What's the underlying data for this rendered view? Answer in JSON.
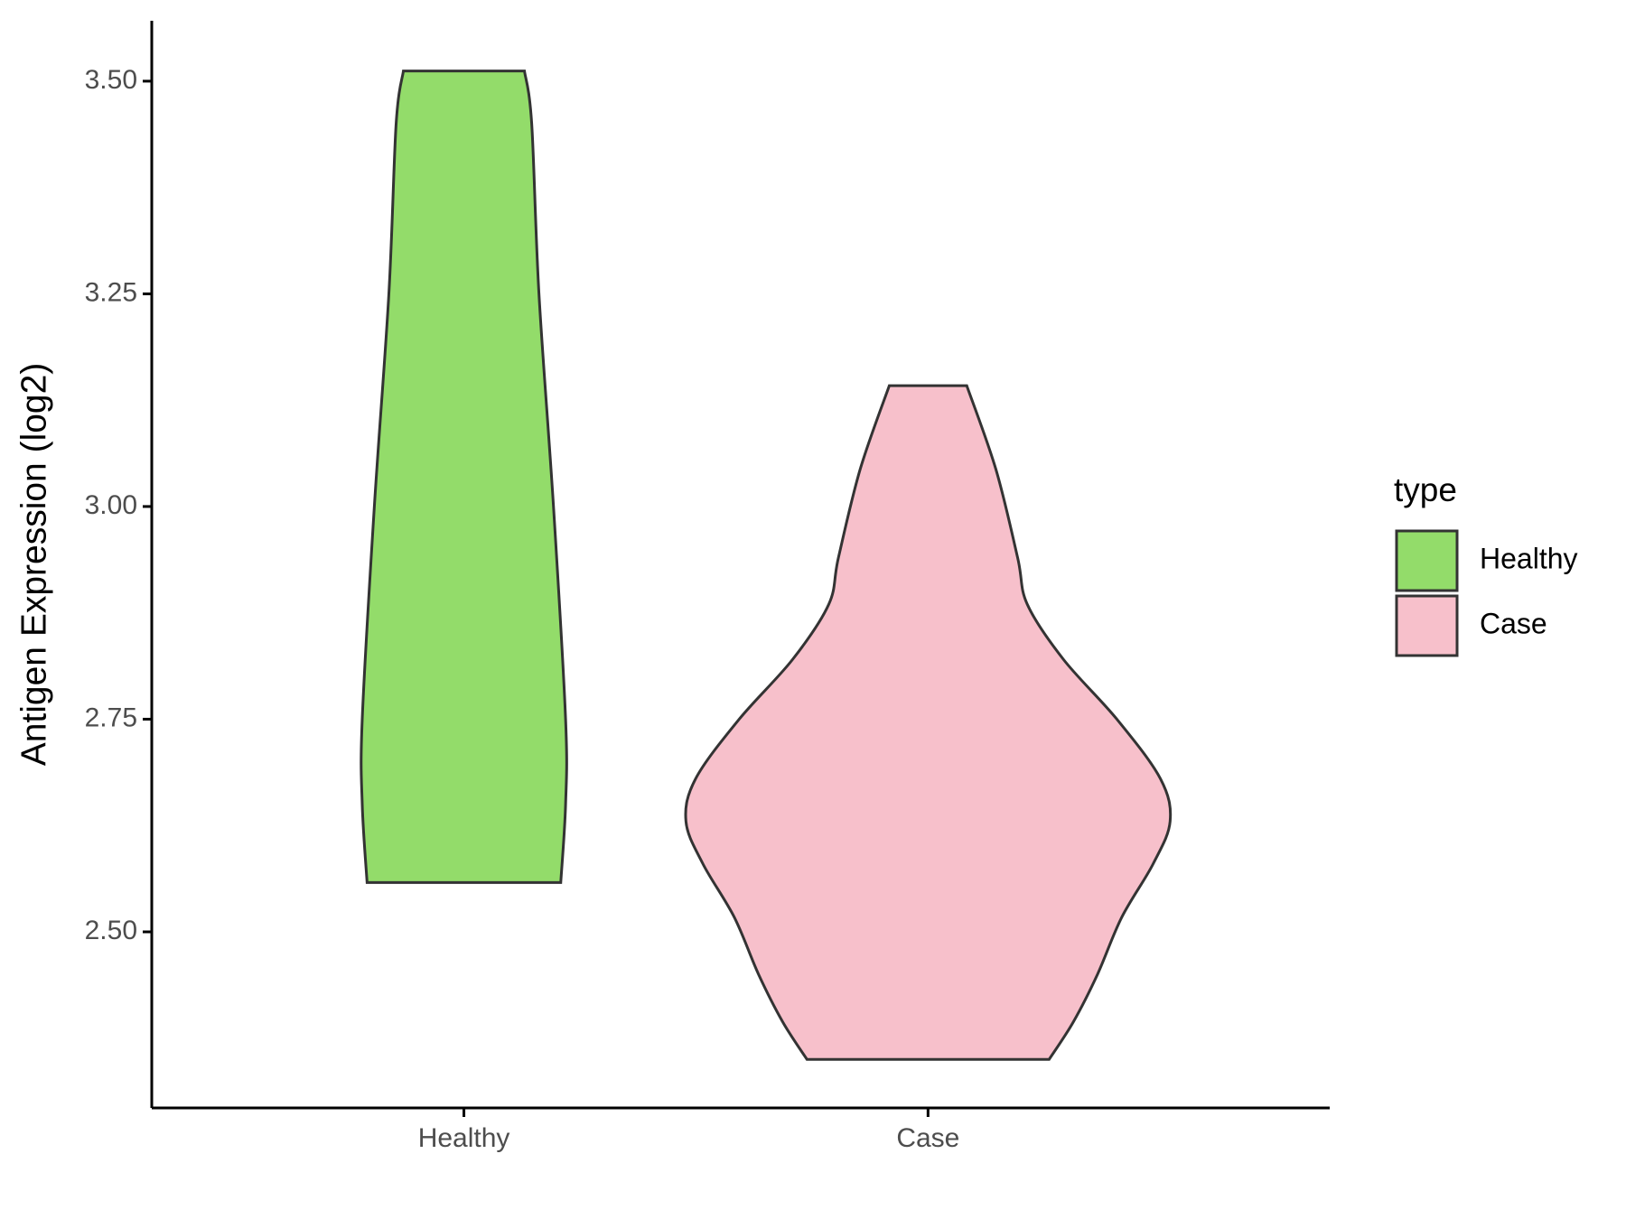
{
  "chart_data": {
    "type": "violin",
    "y_label": "Antigen Expression (log2)",
    "categories": [
      "Healthy",
      "Case"
    ],
    "legend_title": "type",
    "legend_position": "right",
    "ylim": [
      2.293,
      3.571
    ],
    "yticks": [
      {
        "value": 2.5,
        "label": "2.50"
      },
      {
        "value": 2.75,
        "label": "2.75"
      },
      {
        "value": 3.0,
        "label": "3.00"
      },
      {
        "value": 3.25,
        "label": "3.25"
      },
      {
        "value": 3.5,
        "label": "3.50"
      }
    ],
    "series": [
      {
        "name": "Healthy",
        "color": "#93dc6a",
        "y": [
          3.512,
          3.45,
          3.25,
          3.0,
          2.75,
          2.65,
          2.558
        ],
        "density": [
          0.25,
          0.28,
          0.31,
          0.37,
          0.42,
          0.42,
          0.4
        ]
      },
      {
        "name": "Case",
        "color": "#f7c0cb",
        "y": [
          3.142,
          3.044,
          2.94,
          2.885,
          2.82,
          2.75,
          2.68,
          2.63,
          2.58,
          2.517,
          2.45,
          2.394,
          2.35
        ],
        "density": [
          0.16,
          0.28,
          0.37,
          0.41,
          0.56,
          0.78,
          0.96,
          1.0,
          0.93,
          0.8,
          0.7,
          0.6,
          0.5
        ]
      }
    ]
  }
}
